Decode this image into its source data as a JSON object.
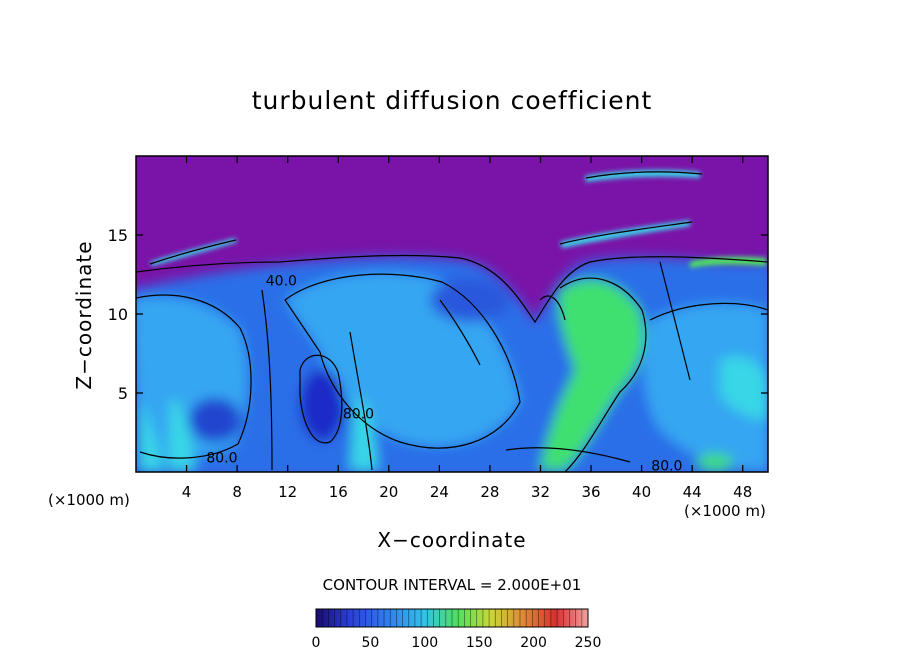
{
  "chart_data": {
    "type": "heatmap",
    "title": "turbulent diffusion coefficient",
    "xlabel": "X−coordinate",
    "ylabel": "Z−coordinate",
    "x_unit_left": "(×1000 m)",
    "x_unit_right": "(×1000 m)",
    "xlim": [
      0,
      50
    ],
    "ylim": [
      0,
      20
    ],
    "x_ticks": [
      4,
      8,
      12,
      16,
      20,
      24,
      28,
      32,
      36,
      40,
      44,
      48
    ],
    "y_ticks": [
      5,
      10,
      15
    ],
    "contour_interval_label": "CONTOUR INTERVAL = 2.000E+01",
    "contour_labels": [
      {
        "text": "80.0",
        "x": 6.8,
        "y": 0.6
      },
      {
        "text": "80.0",
        "x": 17.6,
        "y": 3.4
      },
      {
        "text": "80.0",
        "x": 42.0,
        "y": 0.1
      },
      {
        "text": "40.0",
        "x": 11.5,
        "y": 11.8
      }
    ],
    "colorbar": {
      "min": 0,
      "max": 250,
      "ticks": [
        0,
        50,
        100,
        150,
        200,
        250
      ],
      "colors": [
        "#1a0b6e",
        "#2a3dd8",
        "#2f86f0",
        "#33c2e8",
        "#3fe0a8",
        "#50e060",
        "#8fe040",
        "#c8d838",
        "#e0a838",
        "#e06a3a",
        "#d83030",
        "#f0a0a0"
      ]
    },
    "colors": {
      "upper_layer": "#7a14a8",
      "deep_blue": "#1f2ac8",
      "mid_blue": "#2a6ee8",
      "light_blue": "#36a6f2",
      "cyan": "#38d6e6",
      "green": "#40e070",
      "contour_line": "#000000"
    },
    "grid": false,
    "legend": "colorbar-bottom"
  }
}
